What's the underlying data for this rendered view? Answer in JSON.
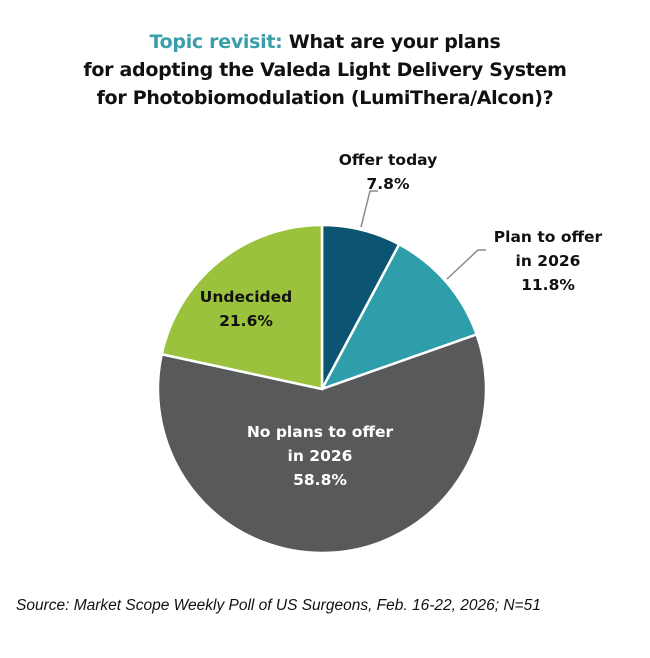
{
  "title": {
    "highlight": "Topic revisit:",
    "line1": "What are your plans",
    "line2": "for adopting the Valeda Light Delivery System",
    "line3": "for Photobiomodulation  (LumiThera/Alcon)?"
  },
  "chart_data": {
    "type": "pie",
    "start": "top, clockwise",
    "slices": [
      {
        "label_lines": [
          "Offer today"
        ],
        "value": 7.8,
        "value_label": "7.8%",
        "color": "#0b5572",
        "label_color": "#111111"
      },
      {
        "label_lines": [
          "Plan to offer",
          "in 2026"
        ],
        "value": 11.8,
        "value_label": "11.8%",
        "color": "#2f9eab",
        "label_color": "#111111"
      },
      {
        "label_lines": [
          "No plans to offer",
          "in 2026"
        ],
        "value": 58.8,
        "value_label": "58.8%",
        "color": "#58595b",
        "label_color": "#ffffff"
      },
      {
        "label_lines": [
          "Undecided"
        ],
        "value": 21.6,
        "value_label": "21.6%",
        "color": "#9bc23c",
        "label_color": "#111111"
      }
    ]
  },
  "source": "Source: Market Scope Weekly Poll of US Surgeons, Feb. 16-22, 2026; N=51"
}
